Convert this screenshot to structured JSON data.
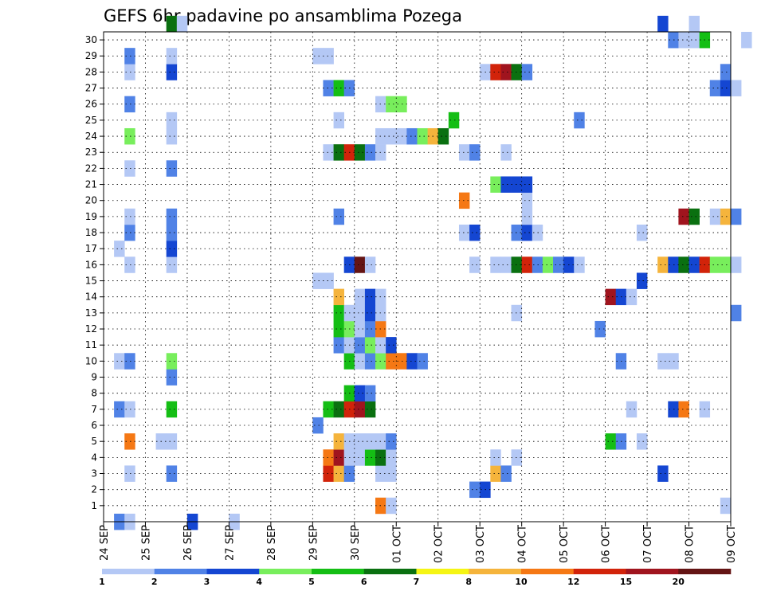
{
  "chart_data": {
    "type": "heatmap",
    "title": "GEFS 6hr padavine po ansamblima Pozega",
    "xlabel": "",
    "ylabel": "",
    "x_start": "24 SEP",
    "x_end": "09 OCT",
    "x_step_hours": 6,
    "x_tick_labels": [
      "24 SEP",
      "25 SEP",
      "26 SEP",
      "27 SEP",
      "28 SEP",
      "29 SEP",
      "30 SEP",
      "01 OCT",
      "02 OCT",
      "03 OCT",
      "04 OCT",
      "05 OCT",
      "06 OCT",
      "07 OCT",
      "08 OCT",
      "09 OCT"
    ],
    "y_tick_labels": [
      "1",
      "2",
      "3",
      "4",
      "5",
      "6",
      "7",
      "8",
      "9",
      "10",
      "11",
      "12",
      "13",
      "14",
      "15",
      "16",
      "17",
      "18",
      "19",
      "20",
      "21",
      "22",
      "23",
      "24",
      "25",
      "26",
      "27",
      "28",
      "29",
      "30"
    ],
    "ylim": [
      0,
      30
    ],
    "grid": true,
    "legend": {
      "position": "bottom",
      "labels": [
        "1",
        "2",
        "3",
        "4",
        "5",
        "6",
        "7",
        "8",
        "10",
        "12",
        "15",
        "20"
      ],
      "colors": [
        "#b4c8f5",
        "#5082e6",
        "#1446d2",
        "#78ee5c",
        "#14be14",
        "#0a7010",
        "#f5f514",
        "#f5b43c",
        "#f57814",
        "#d2230a",
        "#a0141e",
        "#641414"
      ]
    },
    "cells": [
      [
        1,
        0,
        2
      ],
      [
        2,
        0,
        1
      ],
      [
        8,
        0,
        3
      ],
      [
        12,
        0,
        1
      ],
      [
        26,
        1,
        9
      ],
      [
        27,
        1,
        1
      ],
      [
        59,
        1,
        1
      ],
      [
        35,
        2,
        2
      ],
      [
        36,
        2,
        3
      ],
      [
        2,
        3,
        1
      ],
      [
        6,
        3,
        2
      ],
      [
        21,
        3,
        10
      ],
      [
        22,
        3,
        8
      ],
      [
        23,
        3,
        2
      ],
      [
        26,
        3,
        1
      ],
      [
        27,
        3,
        1
      ],
      [
        37,
        3,
        8
      ],
      [
        38,
        3,
        2
      ],
      [
        53,
        3,
        3
      ],
      [
        21,
        4,
        9
      ],
      [
        22,
        4,
        11
      ],
      [
        23,
        4,
        1
      ],
      [
        24,
        4,
        1
      ],
      [
        25,
        4,
        5
      ],
      [
        26,
        4,
        6
      ],
      [
        27,
        4,
        1
      ],
      [
        37,
        4,
        1
      ],
      [
        39,
        4,
        1
      ],
      [
        2,
        5,
        9
      ],
      [
        5,
        5,
        1
      ],
      [
        6,
        5,
        1
      ],
      [
        22,
        5,
        8
      ],
      [
        23,
        5,
        1
      ],
      [
        24,
        5,
        1
      ],
      [
        25,
        5,
        1
      ],
      [
        26,
        5,
        1
      ],
      [
        27,
        5,
        2
      ],
      [
        48,
        5,
        5
      ],
      [
        49,
        5,
        2
      ],
      [
        51,
        5,
        1
      ],
      [
        20,
        6,
        2
      ],
      [
        1,
        7,
        2
      ],
      [
        2,
        7,
        1
      ],
      [
        6,
        7,
        5
      ],
      [
        21,
        7,
        5
      ],
      [
        22,
        7,
        6
      ],
      [
        23,
        7,
        10
      ],
      [
        24,
        7,
        11
      ],
      [
        25,
        7,
        6
      ],
      [
        50,
        7,
        1
      ],
      [
        54,
        7,
        3
      ],
      [
        55,
        7,
        9
      ],
      [
        57,
        7,
        1
      ],
      [
        23,
        8,
        5
      ],
      [
        24,
        8,
        3
      ],
      [
        25,
        8,
        2
      ],
      [
        6,
        9,
        2
      ],
      [
        1,
        10,
        1
      ],
      [
        2,
        10,
        2
      ],
      [
        6,
        10,
        4
      ],
      [
        23,
        10,
        5
      ],
      [
        24,
        10,
        1
      ],
      [
        25,
        10,
        2
      ],
      [
        26,
        10,
        4
      ],
      [
        27,
        10,
        9
      ],
      [
        28,
        10,
        9
      ],
      [
        29,
        10,
        3
      ],
      [
        30,
        10,
        2
      ],
      [
        49,
        10,
        2
      ],
      [
        53,
        10,
        1
      ],
      [
        54,
        10,
        1
      ],
      [
        22,
        11,
        2
      ],
      [
        23,
        11,
        1
      ],
      [
        24,
        11,
        2
      ],
      [
        25,
        11,
        4
      ],
      [
        26,
        11,
        1
      ],
      [
        27,
        11,
        3
      ],
      [
        22,
        12,
        5
      ],
      [
        23,
        12,
        4
      ],
      [
        24,
        12,
        1
      ],
      [
        25,
        12,
        2
      ],
      [
        26,
        12,
        9
      ],
      [
        47,
        12,
        2
      ],
      [
        22,
        13,
        5
      ],
      [
        23,
        13,
        1
      ],
      [
        24,
        13,
        1
      ],
      [
        25,
        13,
        3
      ],
      [
        26,
        13,
        1
      ],
      [
        39,
        13,
        1
      ],
      [
        60,
        13,
        2
      ],
      [
        22,
        14,
        8
      ],
      [
        24,
        14,
        1
      ],
      [
        25,
        14,
        3
      ],
      [
        26,
        14,
        1
      ],
      [
        48,
        14,
        11
      ],
      [
        49,
        14,
        3
      ],
      [
        50,
        14,
        1
      ],
      [
        20,
        15,
        1
      ],
      [
        21,
        15,
        1
      ],
      [
        51,
        15,
        3
      ],
      [
        2,
        16,
        1
      ],
      [
        6,
        16,
        1
      ],
      [
        23,
        16,
        3
      ],
      [
        24,
        16,
        12
      ],
      [
        25,
        16,
        1
      ],
      [
        35,
        16,
        1
      ],
      [
        37,
        16,
        1
      ],
      [
        38,
        16,
        1
      ],
      [
        39,
        16,
        6
      ],
      [
        40,
        16,
        10
      ],
      [
        41,
        16,
        2
      ],
      [
        42,
        16,
        4
      ],
      [
        43,
        16,
        2
      ],
      [
        44,
        16,
        3
      ],
      [
        45,
        16,
        1
      ],
      [
        53,
        16,
        8
      ],
      [
        54,
        16,
        3
      ],
      [
        55,
        16,
        6
      ],
      [
        56,
        16,
        3
      ],
      [
        57,
        16,
        10
      ],
      [
        58,
        16,
        4
      ],
      [
        59,
        16,
        4
      ],
      [
        60,
        16,
        1
      ],
      [
        1,
        17,
        1
      ],
      [
        6,
        17,
        3
      ],
      [
        2,
        18,
        2
      ],
      [
        6,
        18,
        2
      ],
      [
        34,
        18,
        1
      ],
      [
        35,
        18,
        3
      ],
      [
        39,
        18,
        2
      ],
      [
        40,
        18,
        3
      ],
      [
        41,
        18,
        1
      ],
      [
        51,
        18,
        1
      ],
      [
        2,
        19,
        1
      ],
      [
        6,
        19,
        2
      ],
      [
        22,
        19,
        2
      ],
      [
        40,
        19,
        1
      ],
      [
        55,
        19,
        11
      ],
      [
        56,
        19,
        6
      ],
      [
        58,
        19,
        1
      ],
      [
        59,
        19,
        8
      ],
      [
        60,
        19,
        2
      ],
      [
        34,
        20,
        9
      ],
      [
        40,
        20,
        1
      ],
      [
        37,
        21,
        4
      ],
      [
        38,
        21,
        3
      ],
      [
        39,
        21,
        3
      ],
      [
        40,
        21,
        3
      ],
      [
        2,
        22,
        1
      ],
      [
        6,
        22,
        2
      ],
      [
        21,
        23,
        1
      ],
      [
        22,
        23,
        6
      ],
      [
        23,
        23,
        10
      ],
      [
        24,
        23,
        6
      ],
      [
        25,
        23,
        2
      ],
      [
        26,
        23,
        1
      ],
      [
        34,
        23,
        1
      ],
      [
        35,
        23,
        2
      ],
      [
        38,
        23,
        1
      ],
      [
        2,
        24,
        4
      ],
      [
        6,
        24,
        1
      ],
      [
        26,
        24,
        1
      ],
      [
        27,
        24,
        1
      ],
      [
        28,
        24,
        1
      ],
      [
        29,
        24,
        2
      ],
      [
        30,
        24,
        4
      ],
      [
        31,
        24,
        8
      ],
      [
        32,
        24,
        6
      ],
      [
        6,
        25,
        1
      ],
      [
        22,
        25,
        1
      ],
      [
        33,
        25,
        5
      ],
      [
        45,
        25,
        2
      ],
      [
        2,
        26,
        2
      ],
      [
        26,
        26,
        1
      ],
      [
        27,
        26,
        4
      ],
      [
        28,
        26,
        4
      ],
      [
        21,
        27,
        2
      ],
      [
        22,
        27,
        5
      ],
      [
        23,
        27,
        2
      ],
      [
        58,
        27,
        2
      ],
      [
        59,
        27,
        3
      ],
      [
        60,
        27,
        1
      ],
      [
        2,
        28,
        1
      ],
      [
        6,
        28,
        3
      ],
      [
        36,
        28,
        1
      ],
      [
        37,
        28,
        10
      ],
      [
        38,
        28,
        11
      ],
      [
        39,
        28,
        6
      ],
      [
        40,
        28,
        2
      ],
      [
        59,
        28,
        2
      ],
      [
        2,
        29,
        2
      ],
      [
        6,
        29,
        1
      ],
      [
        20,
        29,
        1
      ],
      [
        21,
        29,
        1
      ],
      [
        54,
        30,
        2
      ],
      [
        55,
        30,
        1
      ],
      [
        56,
        30,
        1
      ],
      [
        57,
        30,
        5
      ],
      [
        61,
        30,
        1
      ],
      [
        6,
        31,
        6
      ],
      [
        7,
        31,
        1
      ],
      [
        53,
        31,
        3
      ],
      [
        56,
        31,
        1
      ]
    ]
  }
}
